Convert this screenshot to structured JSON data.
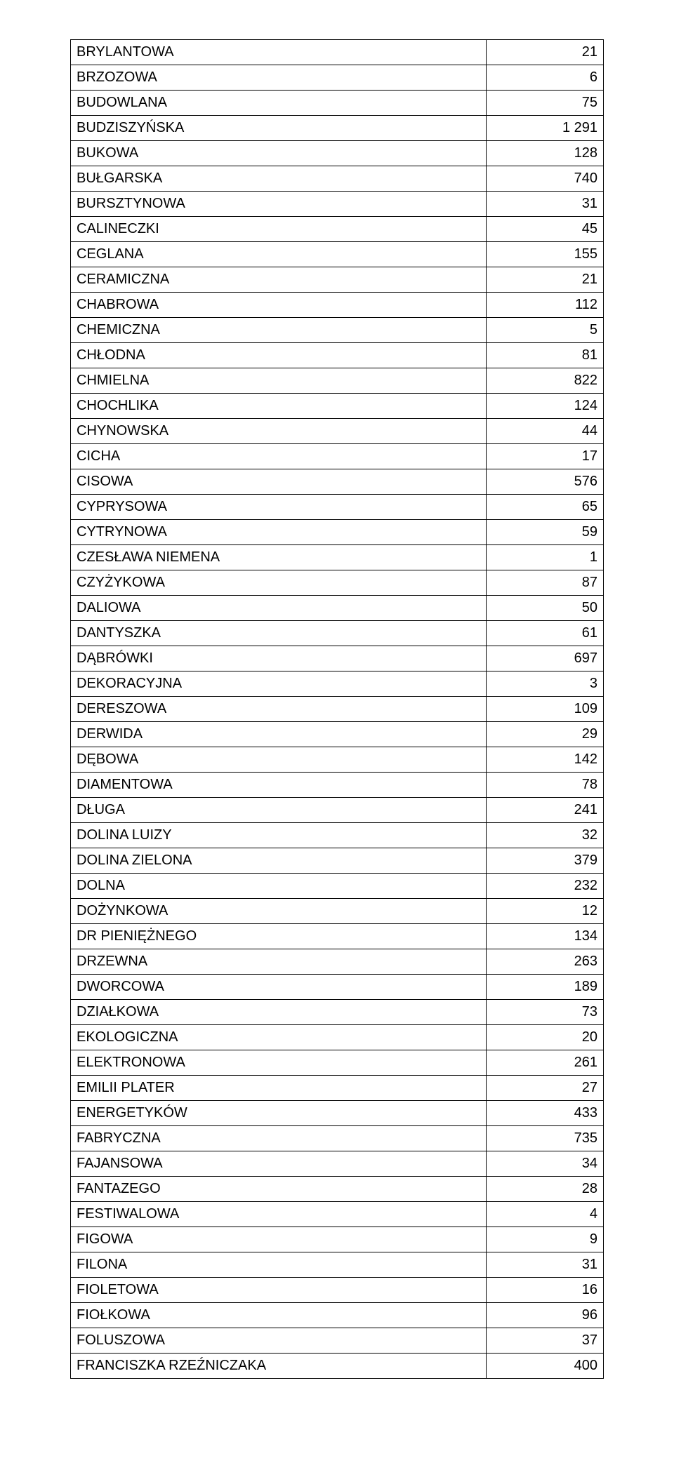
{
  "table": {
    "font_size_pt": 15,
    "border_color": "#000000",
    "background_color": "#ffffff",
    "text_color": "#000000",
    "rows": [
      {
        "name": "BRYLANTOWA",
        "value": "21"
      },
      {
        "name": "BRZOZOWA",
        "value": "6"
      },
      {
        "name": "BUDOWLANA",
        "value": "75"
      },
      {
        "name": "BUDZISZYŃSKA",
        "value": "1 291"
      },
      {
        "name": "BUKOWA",
        "value": "128"
      },
      {
        "name": "BUŁGARSKA",
        "value": "740"
      },
      {
        "name": "BURSZTYNOWA",
        "value": "31"
      },
      {
        "name": "CALINECZKI",
        "value": "45"
      },
      {
        "name": "CEGLANA",
        "value": "155"
      },
      {
        "name": "CERAMICZNA",
        "value": "21"
      },
      {
        "name": "CHABROWA",
        "value": "112"
      },
      {
        "name": "CHEMICZNA",
        "value": "5"
      },
      {
        "name": "CHŁODNA",
        "value": "81"
      },
      {
        "name": "CHMIELNA",
        "value": "822"
      },
      {
        "name": "CHOCHLIKA",
        "value": "124"
      },
      {
        "name": "CHYNOWSKA",
        "value": "44"
      },
      {
        "name": "CICHA",
        "value": "17"
      },
      {
        "name": "CISOWA",
        "value": "576"
      },
      {
        "name": "CYPRYSOWA",
        "value": "65"
      },
      {
        "name": "CYTRYNOWA",
        "value": "59"
      },
      {
        "name": "CZESŁAWA NIEMENA",
        "value": "1"
      },
      {
        "name": "CZYŻYKOWA",
        "value": "87"
      },
      {
        "name": "DALIOWA",
        "value": "50"
      },
      {
        "name": "DANTYSZKA",
        "value": "61"
      },
      {
        "name": "DĄBRÓWKI",
        "value": "697"
      },
      {
        "name": "DEKORACYJNA",
        "value": "3"
      },
      {
        "name": "DERESZOWA",
        "value": "109"
      },
      {
        "name": "DERWIDA",
        "value": "29"
      },
      {
        "name": "DĘBOWA",
        "value": "142"
      },
      {
        "name": "DIAMENTOWA",
        "value": "78"
      },
      {
        "name": "DŁUGA",
        "value": "241"
      },
      {
        "name": "DOLINA LUIZY",
        "value": "32"
      },
      {
        "name": "DOLINA ZIELONA",
        "value": "379"
      },
      {
        "name": "DOLNA",
        "value": "232"
      },
      {
        "name": "DOŻYNKOWA",
        "value": "12"
      },
      {
        "name": "DR PIENIĘŻNEGO",
        "value": "134"
      },
      {
        "name": "DRZEWNA",
        "value": "263"
      },
      {
        "name": "DWORCOWA",
        "value": "189"
      },
      {
        "name": "DZIAŁKOWA",
        "value": "73"
      },
      {
        "name": "EKOLOGICZNA",
        "value": "20"
      },
      {
        "name": "ELEKTRONOWA",
        "value": "261"
      },
      {
        "name": "EMILII PLATER",
        "value": "27"
      },
      {
        "name": "ENERGETYKÓW",
        "value": "433"
      },
      {
        "name": "FABRYCZNA",
        "value": "735"
      },
      {
        "name": "FAJANSOWA",
        "value": "34"
      },
      {
        "name": "FANTAZEGO",
        "value": "28"
      },
      {
        "name": "FESTIWALOWA",
        "value": "4"
      },
      {
        "name": "FIGOWA",
        "value": "9"
      },
      {
        "name": "FILONA",
        "value": "31"
      },
      {
        "name": "FIOLETOWA",
        "value": "16"
      },
      {
        "name": "FIOŁKOWA",
        "value": "96"
      },
      {
        "name": "FOLUSZOWA",
        "value": "37"
      },
      {
        "name": "FRANCISZKA RZEŹNICZAKA",
        "value": "400"
      }
    ]
  }
}
